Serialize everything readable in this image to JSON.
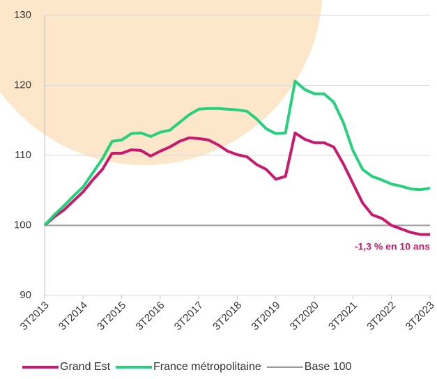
{
  "chart_data": {
    "type": "line",
    "categories": [
      "3T2013",
      null,
      null,
      null,
      "3T2014",
      null,
      null,
      null,
      "3T2015",
      null,
      null,
      null,
      "3T2016",
      null,
      null,
      null,
      "3T2017",
      null,
      null,
      null,
      "3T2018",
      null,
      null,
      null,
      "3T2019",
      null,
      null,
      null,
      "3T2020",
      null,
      null,
      null,
      "3T2021",
      null,
      null,
      null,
      "3T2022",
      null,
      null,
      null,
      "3T2023"
    ],
    "series": [
      {
        "name": "Grand Est",
        "color": "#c8196e",
        "values": [
          100,
          101.2,
          102.2,
          103.5,
          104.8,
          106.5,
          108,
          110.3,
          110.3,
          110.8,
          110.7,
          109.9,
          110.6,
          111.2,
          112,
          112.5,
          112.4,
          112.2,
          111.5,
          110.6,
          110.1,
          109.8,
          108.7,
          108,
          106.6,
          107,
          113.2,
          112.3,
          111.8,
          111.8,
          111.2,
          108.8,
          106,
          103.2,
          101.5,
          101,
          100,
          99.5,
          99,
          98.7,
          98.7
        ]
      },
      {
        "name": "France métropolitaine",
        "color": "#26d07c",
        "values": [
          100,
          101.5,
          102.8,
          104.2,
          105.5,
          107.5,
          109.5,
          112,
          112.2,
          113.1,
          113.2,
          112.7,
          113.3,
          113.6,
          114.7,
          115.8,
          116.6,
          116.7,
          116.7,
          116.6,
          116.5,
          116.3,
          115.2,
          113.8,
          113.1,
          113.2,
          120.6,
          119.4,
          118.8,
          118.8,
          117.6,
          114.7,
          110.7,
          108,
          107,
          106.5,
          105.9,
          105.6,
          105.2,
          105.1,
          105.3
        ]
      }
    ],
    "baseline": {
      "name": "Base 100",
      "value": 100,
      "color": "#999999"
    },
    "annotation": "-1,3 % en 10 ans",
    "ylim": [
      90,
      130
    ],
    "yticks": [
      90,
      100,
      110,
      120,
      130
    ],
    "grid": true
  }
}
